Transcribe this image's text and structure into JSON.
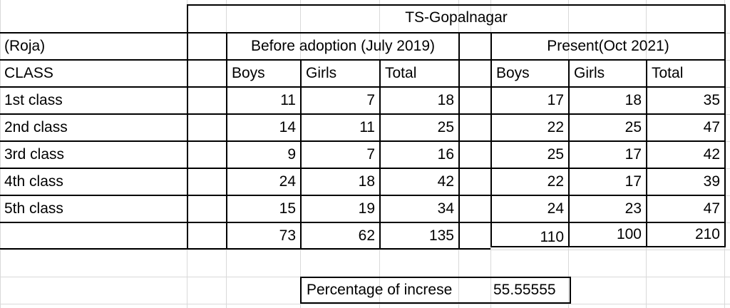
{
  "sheet": {
    "title": "TS-Gopalnagar",
    "group_label": "(Roja)",
    "class_header": "CLASS",
    "before_header": "Before adoption (July 2019)",
    "present_header": "Present(Oct 2021)",
    "col_boys": "Boys",
    "col_girls": "Girls",
    "col_total": "Total",
    "rows": [
      {
        "label": "1st class",
        "b_boys": "11",
        "b_girls": "7",
        "b_total": "18",
        "p_boys": "17",
        "p_girls": "18",
        "p_total": "35"
      },
      {
        "label": "2nd class",
        "b_boys": "14",
        "b_girls": "11",
        "b_total": "25",
        "p_boys": "22",
        "p_girls": "25",
        "p_total": "47"
      },
      {
        "label": "3rd class",
        "b_boys": "9",
        "b_girls": "7",
        "b_total": "16",
        "p_boys": "25",
        "p_girls": "17",
        "p_total": "42"
      },
      {
        "label": "4th class",
        "b_boys": "24",
        "b_girls": "18",
        "b_total": "42",
        "p_boys": "22",
        "p_girls": "17",
        "p_total": "39"
      },
      {
        "label": "5th class",
        "b_boys": "15",
        "b_girls": "19",
        "b_total": "34",
        "p_boys": "24",
        "p_girls": "23",
        "p_total": "47"
      }
    ],
    "totals": {
      "b_boys": "73",
      "b_girls": "62",
      "b_total": "135",
      "p_boys": "110",
      "p_girls": "100",
      "p_total": "210"
    },
    "percentage_label": "Percentage of increse",
    "percentage_value": "55.55555"
  }
}
